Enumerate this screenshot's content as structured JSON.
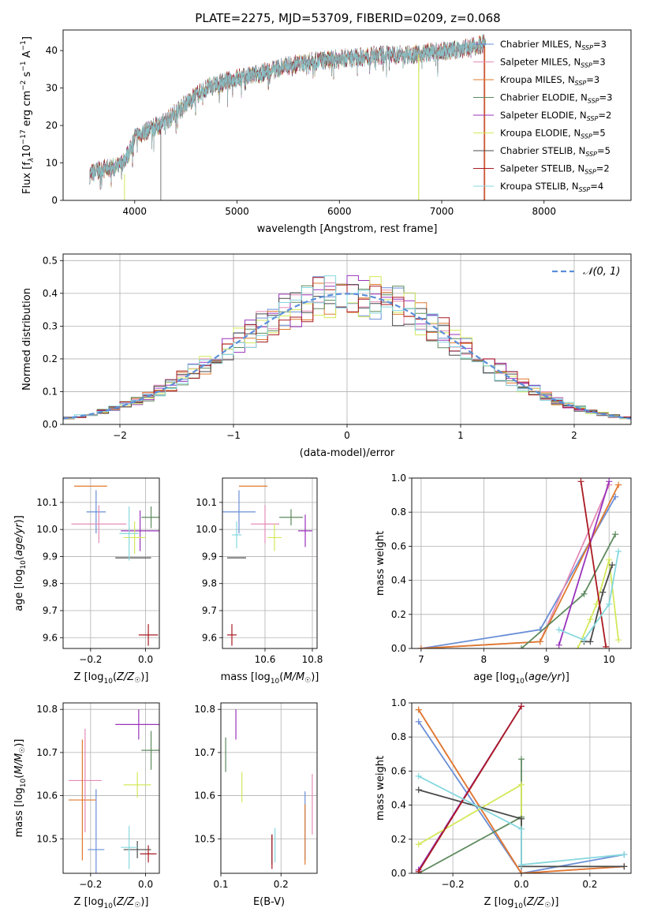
{
  "figure_title": "PLATE=2275, MJD=53709, FIBERID=0209, z=0.068",
  "colors": {
    "chabrier_miles": "#6a8fd6",
    "salpeter_miles": "#e48bb6",
    "kroupa_miles": "#e07a2e",
    "chabrier_elodie": "#5e8a5e",
    "salpeter_elodie": "#9933bb",
    "kroupa_elodie": "#d4e85a",
    "chabrier_stelib": "#4a4a4a",
    "salpeter_stelib": "#aa1a22",
    "kroupa_stelib": "#86d8de",
    "grid": "#b0b0b0",
    "data": "#555555"
  },
  "chart_data": [
    {
      "id": "spectrum",
      "type": "line",
      "title": "PLATE=2275, MJD=53709, FIBERID=0209, z=0.068",
      "xlabel": "wavelength [Angstrom, rest frame]",
      "ylabel": "Flux [f_λ 10^-17 erg cm^-2 s^-1 A^-1]",
      "xlim": [
        3300,
        8850
      ],
      "ylim": [
        0,
        45.5
      ],
      "xticks": [
        4000,
        5000,
        6000,
        7000,
        8000
      ],
      "yticks": [
        0,
        10,
        20,
        30,
        40
      ],
      "grid": false,
      "legend_position": "right",
      "continuum": {
        "x": [
          3560,
          3700,
          3850,
          3950,
          4000,
          4150,
          4300,
          4500,
          4700,
          4900,
          5100,
          5300,
          5500,
          5700,
          5900,
          6100,
          6300,
          6500,
          6700,
          6900,
          7100,
          7300,
          7430
        ],
        "y": [
          7,
          8.5,
          9,
          13,
          17,
          19,
          21,
          26,
          30,
          32,
          33,
          34.5,
          36,
          37,
          37.5,
          38,
          38.5,
          39,
          39,
          39.5,
          40,
          41,
          42
        ]
      },
      "series": [
        {
          "name": "Chabrier MILES, N_SSP=3",
          "nssp": "3",
          "color": "#6a8fd6"
        },
        {
          "name": "Salpeter MILES, N_SSP=3",
          "nssp": "3",
          "color": "#e48bb6"
        },
        {
          "name": "Kroupa MILES, N_SSP=3",
          "nssp": "3",
          "color": "#e07a2e"
        },
        {
          "name": "Chabrier ELODIE, N_SSP=3",
          "nssp": "3",
          "color": "#5e8a5e"
        },
        {
          "name": "Salpeter ELODIE, N_SSP=2",
          "nssp": "2",
          "color": "#9933bb"
        },
        {
          "name": "Kroupa ELODIE, N_SSP=5",
          "nssp": "5",
          "color": "#d4e85a"
        },
        {
          "name": "Chabrier STELIB, N_SSP=5",
          "nssp": "5",
          "color": "#4a4a4a"
        },
        {
          "name": "Salpeter STELIB, N_SSP=2",
          "nssp": "2",
          "color": "#aa1a22"
        },
        {
          "name": "Kroupa STELIB, N_SSP=4",
          "nssp": "4",
          "color": "#86d8de"
        }
      ]
    },
    {
      "id": "residuals",
      "type": "line",
      "xlabel": "(data-model)/error",
      "ylabel": "Normed distribution",
      "xlim": [
        -2.5,
        2.5
      ],
      "ylim": [
        0,
        0.52
      ],
      "xticks": [
        -2,
        -1,
        0,
        1,
        2
      ],
      "xticklabels": [
        "−2",
        "−1",
        "0",
        "1",
        "2"
      ],
      "yticks": [
        0.0,
        0.1,
        0.2,
        0.3,
        0.4,
        0.5
      ],
      "yticklabels": [
        "0.0",
        "0.1",
        "0.2",
        "0.3",
        "0.4",
        "0.5"
      ],
      "grid": true,
      "legend_position": "top-right",
      "gaussian_label": "𝒩(0, 1)",
      "bin_width": 0.1
    },
    {
      "id": "age_vs_Z",
      "type": "scatter",
      "xlabel": "Z [log10(Z/Z☉)]",
      "ylabel": "age [log10(age/yr)]",
      "xlim": [
        -0.3,
        0.05
      ],
      "ylim": [
        9.56,
        10.19
      ],
      "xticks": [
        -0.2,
        0.0
      ],
      "xticklabels": [
        "−0.2",
        "0.0"
      ],
      "yticks": [
        9.6,
        9.7,
        9.8,
        9.9,
        10.0,
        10.1
      ],
      "yticklabels": [
        "9.6",
        "9.7",
        "9.8",
        "9.9",
        "10.0",
        "10.1"
      ],
      "grid": true,
      "points": [
        {
          "x": -0.18,
          "y": 10.065,
          "ex": 0.035,
          "ey": 0.08,
          "color": "#6a8fd6"
        },
        {
          "x": -0.17,
          "y": 10.02,
          "ex": 0.1,
          "ey": 0.07,
          "color": "#e48bb6"
        },
        {
          "x": -0.2,
          "y": 10.16,
          "ex": 0.06,
          "ey": 0.0,
          "color": "#e07a2e"
        },
        {
          "x": 0.02,
          "y": 10.045,
          "ex": 0.035,
          "ey": 0.04,
          "color": "#5e8a5e"
        },
        {
          "x": -0.02,
          "y": 9.995,
          "ex": 0.07,
          "ey": 0.075,
          "color": "#9933bb"
        },
        {
          "x": -0.04,
          "y": 9.97,
          "ex": 0.04,
          "ey": 0.06,
          "color": "#d4e85a"
        },
        {
          "x": -0.045,
          "y": 9.895,
          "ex": 0.065,
          "ey": 0.0,
          "color": "#4a4a4a"
        },
        {
          "x": 0.01,
          "y": 9.61,
          "ex": 0.035,
          "ey": 0.04,
          "color": "#aa1a22"
        },
        {
          "x": -0.06,
          "y": 9.985,
          "ex": 0.035,
          "ey": 0.1,
          "color": "#86d8de"
        }
      ]
    },
    {
      "id": "age_vs_mass",
      "type": "scatter",
      "xlabel": "mass [log10(M/M☉)]",
      "ylabel": "",
      "xlim": [
        10.42,
        10.82
      ],
      "ylim": [
        9.56,
        10.19
      ],
      "xticks": [
        10.6,
        10.8
      ],
      "xticklabels": [
        "10.6",
        "10.8"
      ],
      "yticks": [
        9.6,
        9.7,
        9.8,
        9.9,
        10.0,
        10.1
      ],
      "yticklabels": [
        "9.6",
        "9.7",
        "9.8",
        "9.9",
        "10.0",
        "10.1"
      ],
      "grid": true,
      "points": [
        {
          "x": 10.49,
          "y": 10.065,
          "ex": 0.07,
          "ey": 0.08,
          "color": "#6a8fd6"
        },
        {
          "x": 10.6,
          "y": 10.02,
          "ex": 0.06,
          "ey": 0.07,
          "color": "#e48bb6"
        },
        {
          "x": 10.55,
          "y": 10.16,
          "ex": 0.06,
          "ey": 0.0,
          "color": "#e07a2e"
        },
        {
          "x": 10.71,
          "y": 10.045,
          "ex": 0.05,
          "ey": 0.03,
          "color": "#5e8a5e"
        },
        {
          "x": 10.77,
          "y": 9.995,
          "ex": 0.03,
          "ey": 0.06,
          "color": "#9933bb"
        },
        {
          "x": 10.64,
          "y": 9.97,
          "ex": 0.03,
          "ey": 0.05,
          "color": "#d4e85a"
        },
        {
          "x": 10.48,
          "y": 9.895,
          "ex": 0.04,
          "ey": 0.0,
          "color": "#4a4a4a"
        },
        {
          "x": 10.46,
          "y": 9.61,
          "ex": 0.02,
          "ey": 0.04,
          "color": "#aa1a22"
        },
        {
          "x": 10.48,
          "y": 9.98,
          "ex": 0.02,
          "ey": 0.05,
          "color": "#86d8de"
        }
      ]
    },
    {
      "id": "weight_vs_age",
      "type": "line",
      "xlabel": "age [log10(age/yr)]",
      "ylabel": "mass weight",
      "xlim": [
        6.85,
        10.35
      ],
      "ylim": [
        0,
        1.0
      ],
      "xticks": [
        7,
        8,
        9,
        10
      ],
      "yticks": [
        0.0,
        0.2,
        0.4,
        0.6,
        0.8,
        1.0
      ],
      "yticklabels": [
        "0.0",
        "0.2",
        "0.4",
        "0.6",
        "0.8",
        "1.0"
      ],
      "grid": true,
      "series": [
        {
          "color": "#6a8fd6",
          "x": [
            7.0,
            8.9,
            10.1
          ],
          "y": [
            0.0,
            0.11,
            0.89
          ]
        },
        {
          "color": "#e48bb6",
          "x": [
            7.0,
            8.9,
            10.0
          ],
          "y": [
            0.0,
            0.04,
            0.96
          ]
        },
        {
          "color": "#e07a2e",
          "x": [
            7.0,
            8.9,
            10.15
          ],
          "y": [
            0.0,
            0.04,
            0.96
          ]
        },
        {
          "color": "#5e8a5e",
          "x": [
            8.6,
            9.6,
            10.1
          ],
          "y": [
            0.0,
            0.32,
            0.67
          ]
        },
        {
          "color": "#9933bb",
          "x": [
            9.2,
            10.0
          ],
          "y": [
            0.02,
            0.98
          ]
        },
        {
          "color": "#d4e85a",
          "x": [
            9.5,
            9.7,
            9.8,
            10.0,
            10.15
          ],
          "y": [
            0.0,
            0.17,
            0.26,
            0.52,
            0.05
          ]
        },
        {
          "color": "#4a4a4a",
          "x": [
            9.6,
            9.7,
            9.9,
            10.05
          ],
          "y": [
            0.04,
            0.04,
            0.33,
            0.49
          ]
        },
        {
          "color": "#aa1a22",
          "x": [
            9.55,
            9.95
          ],
          "y": [
            0.98,
            0.01
          ]
        },
        {
          "color": "#86d8de",
          "x": [
            9.2,
            9.6,
            10.0,
            10.15
          ],
          "y": [
            0.11,
            0.05,
            0.26,
            0.57
          ]
        }
      ]
    },
    {
      "id": "mass_vs_Z",
      "type": "scatter",
      "xlabel": "Z [log10(Z/Z☉)]",
      "ylabel": "mass [log10(M/M☉)]",
      "xlim": [
        -0.3,
        0.05
      ],
      "ylim": [
        10.42,
        10.815
      ],
      "xticks": [
        -0.2,
        0.0
      ],
      "xticklabels": [
        "−0.2",
        "0.0"
      ],
      "yticks": [
        10.5,
        10.6,
        10.7,
        10.8
      ],
      "yticklabels": [
        "10.5",
        "10.6",
        "10.7",
        "10.8"
      ],
      "grid": true,
      "points": [
        {
          "x": -0.18,
          "y": 10.475,
          "ex": 0.03,
          "ey": 0.14,
          "color": "#6a8fd6"
        },
        {
          "x": -0.22,
          "y": 10.635,
          "ex": 0.06,
          "ey": 0.12,
          "color": "#e48bb6"
        },
        {
          "x": -0.23,
          "y": 10.59,
          "ex": 0.05,
          "ey": 0.14,
          "color": "#e07a2e"
        },
        {
          "x": 0.02,
          "y": 10.705,
          "ex": 0.035,
          "ey": 0.045,
          "color": "#5e8a5e"
        },
        {
          "x": -0.025,
          "y": 10.765,
          "ex": 0.085,
          "ey": 0.035,
          "color": "#9933bb"
        },
        {
          "x": -0.03,
          "y": 10.625,
          "ex": 0.05,
          "ey": 0.03,
          "color": "#d4e85a"
        },
        {
          "x": -0.03,
          "y": 10.475,
          "ex": 0.05,
          "ey": 0.02,
          "color": "#4a4a4a"
        },
        {
          "x": 0.01,
          "y": 10.465,
          "ex": 0.03,
          "ey": 0.02,
          "color": "#aa1a22"
        },
        {
          "x": -0.06,
          "y": 10.48,
          "ex": 0.03,
          "ey": 0.05,
          "color": "#86d8de"
        }
      ]
    },
    {
      "id": "mass_vs_ebv",
      "type": "scatter",
      "xlabel": "E(B-V)",
      "ylabel": "",
      "xlim": [
        0.1,
        0.26
      ],
      "ylim": [
        10.42,
        10.815
      ],
      "xticks": [
        0.1,
        0.2
      ],
      "xticklabels": [
        "0.1",
        "0.2"
      ],
      "yticks": [
        10.5,
        10.6,
        10.7,
        10.8
      ],
      "yticklabels": [
        "10.5",
        "10.6",
        "10.7",
        "10.8"
      ],
      "grid": true,
      "points": [
        {
          "x": 0.24,
          "y": 10.53,
          "ex": 0.0,
          "ey": 0.08,
          "color": "#6a8fd6"
        },
        {
          "x": 0.252,
          "y": 10.58,
          "ex": 0.0,
          "ey": 0.07,
          "color": "#e48bb6"
        },
        {
          "x": 0.24,
          "y": 10.51,
          "ex": 0.0,
          "ey": 0.07,
          "color": "#e07a2e"
        },
        {
          "x": 0.108,
          "y": 10.695,
          "ex": 0.0,
          "ey": 0.04,
          "color": "#5e8a5e"
        },
        {
          "x": 0.125,
          "y": 10.765,
          "ex": 0.0,
          "ey": 0.035,
          "color": "#9933bb"
        },
        {
          "x": 0.135,
          "y": 10.62,
          "ex": 0.0,
          "ey": 0.035,
          "color": "#d4e85a"
        },
        {
          "x": 0.185,
          "y": 10.475,
          "ex": 0.0,
          "ey": 0.035,
          "color": "#4a4a4a"
        },
        {
          "x": 0.185,
          "y": 10.47,
          "ex": 0.0,
          "ey": 0.04,
          "color": "#aa1a22"
        },
        {
          "x": 0.19,
          "y": 10.485,
          "ex": 0.0,
          "ey": 0.04,
          "color": "#86d8de"
        }
      ]
    },
    {
      "id": "weight_vs_Z",
      "type": "line",
      "xlabel": "Z [log10(Z/Z☉)]",
      "ylabel": "mass weight",
      "xlim": [
        -0.32,
        0.32
      ],
      "ylim": [
        0,
        1.0
      ],
      "xticks": [
        -0.2,
        0.0,
        0.2
      ],
      "xticklabels": [
        "−0.2",
        "0.0",
        "0.2"
      ],
      "yticks": [
        0.0,
        0.2,
        0.4,
        0.6,
        0.8,
        1.0
      ],
      "yticklabels": [
        "0.0",
        "0.2",
        "0.4",
        "0.6",
        "0.8",
        "1.0"
      ],
      "grid": true,
      "series": [
        {
          "color": "#6a8fd6",
          "x": [
            -0.3,
            0.0,
            0.3
          ],
          "y": [
            0.89,
            0.0,
            0.11
          ]
        },
        {
          "color": "#e48bb6",
          "x": [
            -0.3,
            0.0,
            0.3
          ],
          "y": [
            0.96,
            0.0,
            0.04
          ]
        },
        {
          "color": "#e07a2e",
          "x": [
            -0.3,
            0.0,
            0.3
          ],
          "y": [
            0.96,
            0.0,
            0.04
          ]
        },
        {
          "color": "#5e8a5e",
          "x": [
            -0.3,
            0.0,
            0.0
          ],
          "y": [
            0.0,
            0.33,
            0.67
          ]
        },
        {
          "color": "#9933bb",
          "x": [
            -0.3,
            0.0
          ],
          "y": [
            0.02,
            0.98
          ]
        },
        {
          "color": "#d4e85a",
          "x": [
            -0.3,
            0.0,
            0.0
          ],
          "y": [
            0.17,
            0.52,
            0.26
          ]
        },
        {
          "color": "#4a4a4a",
          "x": [
            -0.3,
            0.0,
            0.0,
            0.3
          ],
          "y": [
            0.49,
            0.32,
            0.04,
            0.04
          ]
        },
        {
          "color": "#aa1a22",
          "x": [
            -0.3,
            0.0
          ],
          "y": [
            0.01,
            0.98
          ]
        },
        {
          "color": "#86d8de",
          "x": [
            -0.3,
            0.0,
            0.0,
            0.3
          ],
          "y": [
            0.57,
            0.26,
            0.05,
            0.11
          ]
        }
      ]
    }
  ]
}
